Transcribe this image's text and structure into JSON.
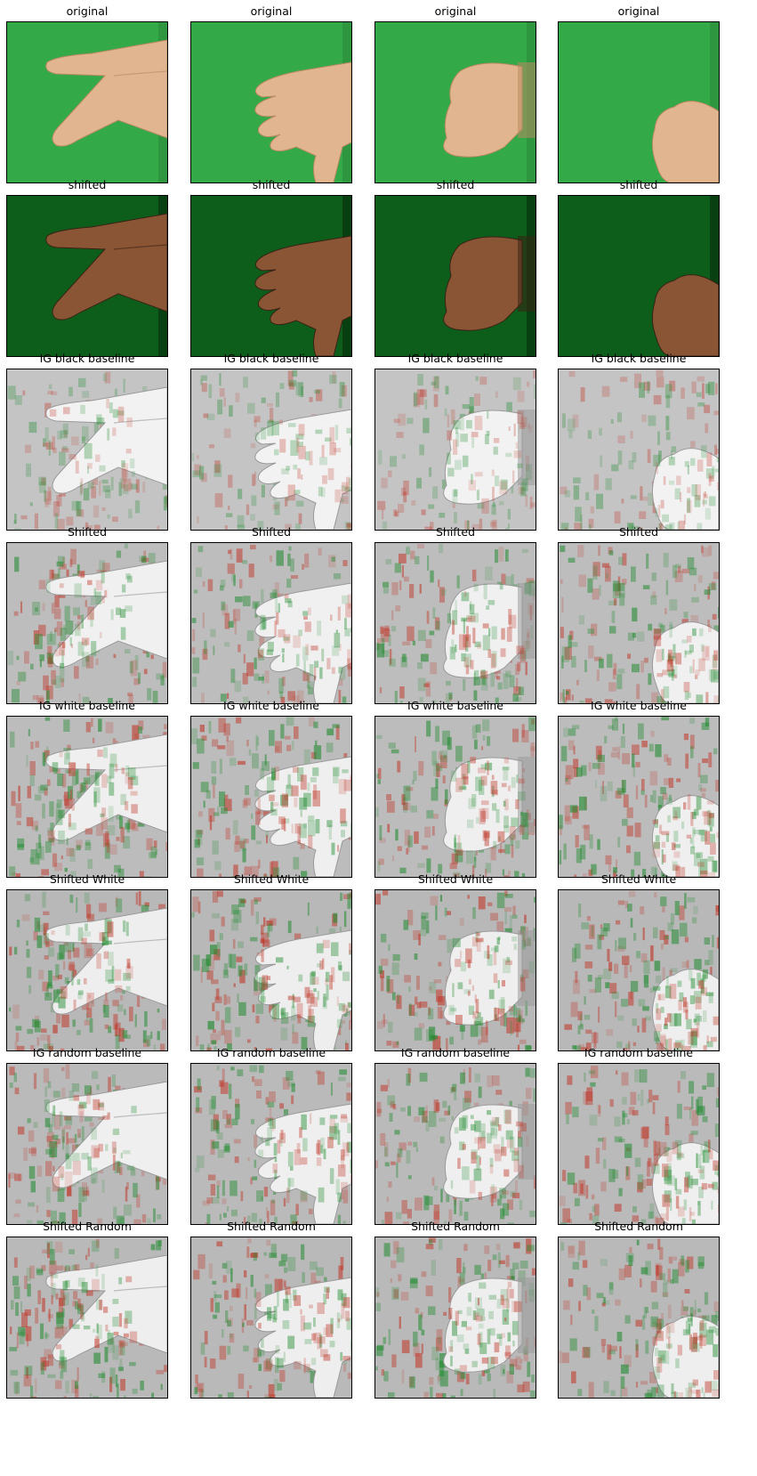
{
  "figure": {
    "row_titles": [
      "original",
      "shifted",
      "IG black baseline",
      "Shifted",
      "IG white baseline",
      "Shifted White",
      "IG random baseline",
      "Shifted Random"
    ],
    "columns": [
      {
        "gesture": "scissors",
        "hand_position": "left"
      },
      {
        "gesture": "paper-thumb-down",
        "hand_position": "right"
      },
      {
        "gesture": "rock-fist",
        "hand_position": "center-right"
      },
      {
        "gesture": "rock-fist",
        "hand_position": "bottom-right"
      }
    ],
    "row_styles": [
      {
        "kind": "photo",
        "background": "#34a947",
        "skin": "#e0b58f"
      },
      {
        "kind": "photo",
        "background": "#0d5e1a",
        "skin": "#8a5535"
      },
      {
        "kind": "attribution",
        "background": "#c4c4c4",
        "skin": "#f2f2f2",
        "attr_strength": 0.35
      },
      {
        "kind": "attribution",
        "background": "#bdbdbd",
        "skin": "#f0f0f0",
        "attr_strength": 0.6
      },
      {
        "kind": "attribution",
        "background": "#bcbcbc",
        "skin": "#efefef",
        "attr_strength": 0.65
      },
      {
        "kind": "attribution",
        "background": "#b8b8b8",
        "skin": "#eeeeee",
        "attr_strength": 0.7
      },
      {
        "kind": "attribution",
        "background": "#bababa",
        "skin": "#efefef",
        "attr_strength": 0.6
      },
      {
        "kind": "attribution",
        "background": "#b9b9b9",
        "skin": "#eeeeee",
        "attr_strength": 0.65
      }
    ],
    "colors": {
      "positive_attribution": "#1f8a2e",
      "negative_attribution": "#c0392b"
    }
  }
}
